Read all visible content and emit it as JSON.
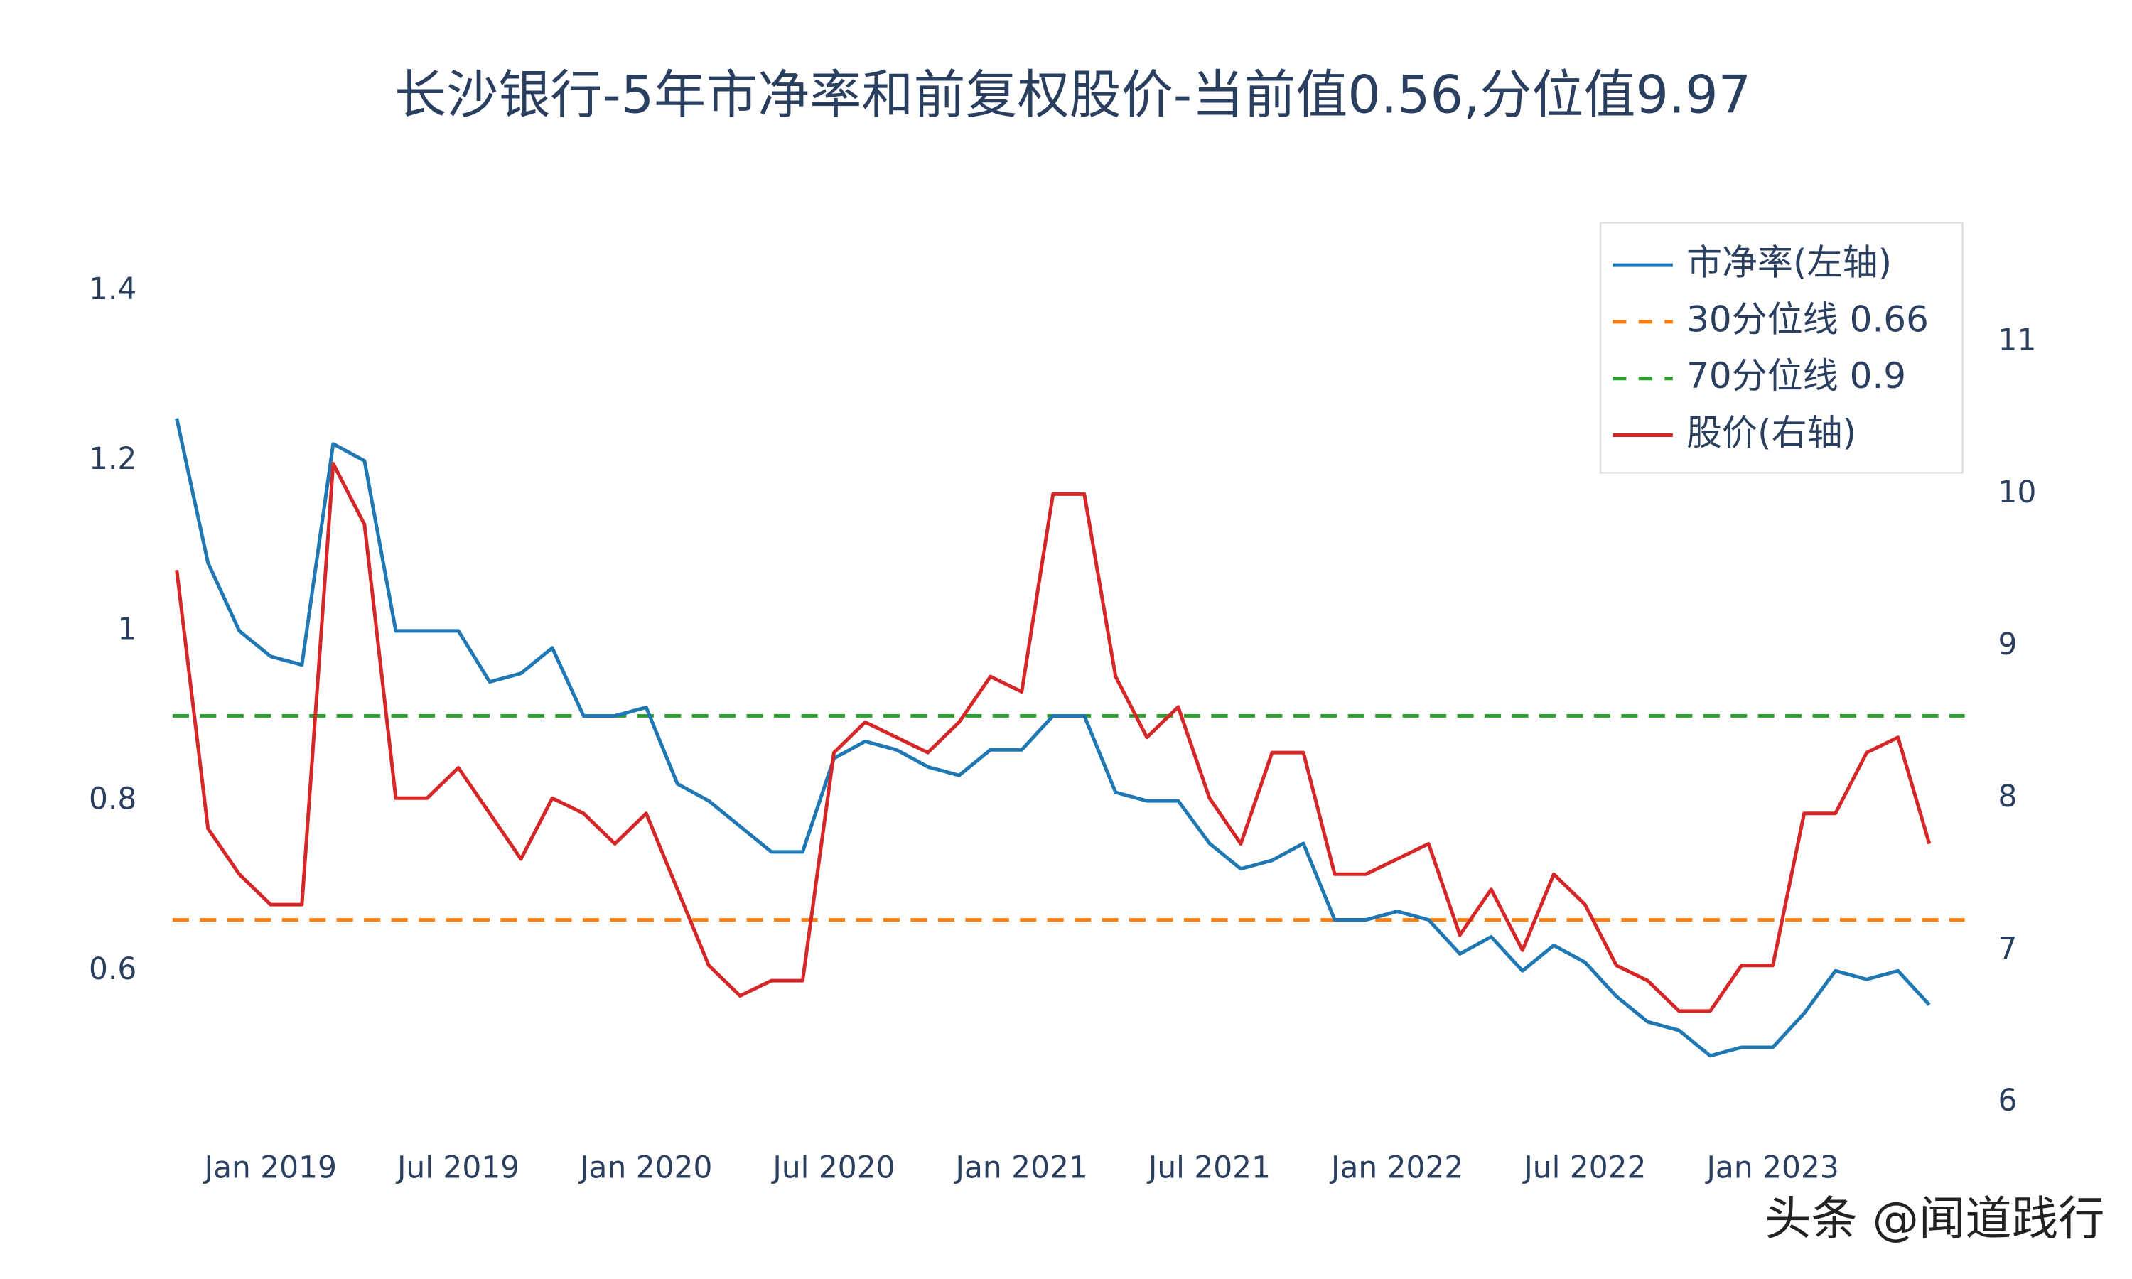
{
  "chart_data": {
    "type": "line",
    "title": "长沙银行-5年市净率和前复权股价-当前值0.56,分位值9.97",
    "x": [
      "2018-10",
      "2018-11",
      "2018-12",
      "2019-01",
      "2019-02",
      "2019-03",
      "2019-04",
      "2019-05",
      "2019-06",
      "2019-07",
      "2019-08",
      "2019-09",
      "2019-10",
      "2019-11",
      "2019-12",
      "2020-01",
      "2020-02",
      "2020-03",
      "2020-04",
      "2020-05",
      "2020-06",
      "2020-07",
      "2020-08",
      "2020-09",
      "2020-10",
      "2020-11",
      "2020-12",
      "2021-01",
      "2021-02",
      "2021-03",
      "2021-04",
      "2021-05",
      "2021-06",
      "2021-07",
      "2021-08",
      "2021-09",
      "2021-10",
      "2021-11",
      "2021-12",
      "2022-01",
      "2022-02",
      "2022-03",
      "2022-04",
      "2022-05",
      "2022-06",
      "2022-07",
      "2022-08",
      "2022-09",
      "2022-10",
      "2022-11",
      "2022-12",
      "2023-01",
      "2023-02",
      "2023-03",
      "2023-04",
      "2023-05",
      "2023-06"
    ],
    "series": [
      {
        "name": "市净率(左轴)",
        "color": "#1f77b4",
        "axis": "y",
        "values": [
          1.25,
          1.08,
          1.0,
          0.97,
          0.96,
          1.22,
          1.2,
          1.0,
          1.0,
          1.0,
          0.94,
          0.95,
          0.98,
          0.9,
          0.9,
          0.91,
          0.82,
          0.8,
          0.77,
          0.74,
          0.74,
          0.85,
          0.87,
          0.86,
          0.84,
          0.83,
          0.86,
          0.86,
          0.9,
          0.9,
          0.81,
          0.8,
          0.8,
          0.75,
          0.72,
          0.73,
          0.75,
          0.66,
          0.66,
          0.67,
          0.66,
          0.62,
          0.64,
          0.6,
          0.63,
          0.61,
          0.57,
          0.54,
          0.53,
          0.5,
          0.51,
          0.51,
          0.55,
          0.6,
          0.59,
          0.6,
          0.56
        ]
      },
      {
        "name": "股价(右轴)",
        "color": "#d62728",
        "axis": "y2",
        "values": [
          9.5,
          7.8,
          7.5,
          7.3,
          7.3,
          10.2,
          9.8,
          8.0,
          8.0,
          8.2,
          7.9,
          7.6,
          8.0,
          7.9,
          7.7,
          7.9,
          7.4,
          6.9,
          6.7,
          6.8,
          6.8,
          8.3,
          8.5,
          8.4,
          8.3,
          8.5,
          8.8,
          8.7,
          10.0,
          10.0,
          8.8,
          8.4,
          8.6,
          8.0,
          7.7,
          8.3,
          8.3,
          7.5,
          7.5,
          7.6,
          7.7,
          7.1,
          7.4,
          7.0,
          7.5,
          7.3,
          6.9,
          6.8,
          6.6,
          6.6,
          6.9,
          6.9,
          7.9,
          7.9,
          8.3,
          8.4,
          7.7
        ]
      }
    ],
    "hlines": [
      {
        "name": "30分位线 0.66",
        "value": 0.66,
        "color": "#ff7f0e"
      },
      {
        "name": "70分位线 0.9",
        "value": 0.9,
        "color": "#2ca02c"
      }
    ],
    "xlim": [
      "2018-10",
      "2023-07"
    ],
    "xticks": [
      {
        "value": "2019-01",
        "label": "Jan 2019"
      },
      {
        "value": "2019-07",
        "label": "Jul 2019"
      },
      {
        "value": "2020-01",
        "label": "Jan 2020"
      },
      {
        "value": "2020-07",
        "label": "Jul 2020"
      },
      {
        "value": "2021-01",
        "label": "Jan 2021"
      },
      {
        "value": "2021-07",
        "label": "Jul 2021"
      },
      {
        "value": "2022-01",
        "label": "Jan 2022"
      },
      {
        "value": "2022-07",
        "label": "Jul 2022"
      },
      {
        "value": "2023-01",
        "label": "Jan 2023"
      }
    ],
    "ylim": [
      0.44,
      1.44
    ],
    "yticks": [
      0.6,
      0.8,
      1,
      1.2,
      1.4
    ],
    "y2lim": [
      5.97,
      11.56
    ],
    "y2ticks": [
      6,
      7,
      8,
      9,
      10,
      11
    ],
    "grid": false,
    "legend": "top-right",
    "watermark": "头条 @闻道践行"
  }
}
